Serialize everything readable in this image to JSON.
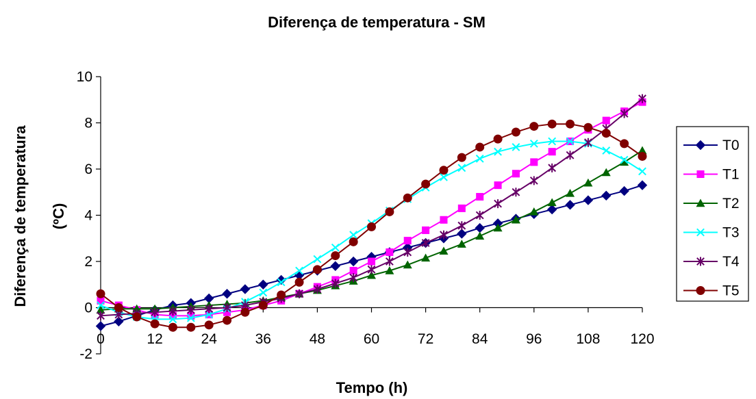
{
  "chart_data": {
    "type": "line",
    "title": "Diferença de temperatura - SM",
    "xlabel": "Tempo (h)",
    "ylabel_lines": [
      "Diferença de temperatura",
      "(ºC)"
    ],
    "xlim": [
      0,
      120
    ],
    "ylim": [
      -2,
      10
    ],
    "x_ticks": [
      "0",
      "12",
      "24",
      "36",
      "48",
      "60",
      "72",
      "84",
      "96",
      "108",
      "120"
    ],
    "y_ticks": [
      "-2",
      "0",
      "2",
      "4",
      "6",
      "8",
      "10"
    ],
    "grid": false,
    "legend_position": "right",
    "x": [
      0,
      4,
      8,
      12,
      16,
      20,
      24,
      28,
      32,
      36,
      40,
      44,
      48,
      52,
      56,
      60,
      64,
      68,
      72,
      76,
      80,
      84,
      88,
      92,
      96,
      100,
      104,
      108,
      112,
      116,
      120
    ],
    "series": [
      {
        "name": "T0",
        "color": "#000080",
        "marker": "diamond",
        "values": [
          -0.8,
          -0.6,
          -0.35,
          -0.1,
          0.1,
          0.2,
          0.4,
          0.6,
          0.8,
          1.0,
          1.2,
          1.4,
          1.6,
          1.8,
          2.0,
          2.2,
          2.4,
          2.6,
          2.8,
          3.0,
          3.2,
          3.45,
          3.65,
          3.85,
          4.05,
          4.25,
          4.45,
          4.65,
          4.85,
          5.05,
          5.3
        ]
      },
      {
        "name": "T1",
        "color": "#FF00FF",
        "marker": "square",
        "values": [
          0.3,
          0.1,
          -0.1,
          -0.3,
          -0.35,
          -0.35,
          -0.3,
          -0.2,
          -0.1,
          0.1,
          0.3,
          0.6,
          0.9,
          1.2,
          1.6,
          2.0,
          2.4,
          2.9,
          3.35,
          3.8,
          4.3,
          4.8,
          5.3,
          5.8,
          6.3,
          6.75,
          7.2,
          7.7,
          8.1,
          8.5,
          8.9
        ]
      },
      {
        "name": "T2",
        "color": "#006400",
        "marker": "triangle",
        "values": [
          -0.1,
          -0.05,
          -0.05,
          -0.05,
          0.0,
          0.05,
          0.1,
          0.15,
          0.2,
          0.3,
          0.45,
          0.6,
          0.75,
          0.95,
          1.15,
          1.4,
          1.6,
          1.85,
          2.15,
          2.45,
          2.75,
          3.1,
          3.45,
          3.8,
          4.15,
          4.55,
          4.95,
          5.4,
          5.85,
          6.3,
          6.8
        ]
      },
      {
        "name": "T3",
        "color": "#00FFFF",
        "marker": "x",
        "values": [
          0.1,
          -0.2,
          -0.4,
          -0.5,
          -0.5,
          -0.45,
          -0.3,
          -0.05,
          0.25,
          0.65,
          1.1,
          1.6,
          2.1,
          2.6,
          3.15,
          3.65,
          4.2,
          4.7,
          5.2,
          5.65,
          6.05,
          6.45,
          6.75,
          6.95,
          7.1,
          7.2,
          7.2,
          7.1,
          6.8,
          6.4,
          5.9
        ]
      },
      {
        "name": "T4",
        "color": "#660066",
        "marker": "star",
        "values": [
          -0.35,
          -0.3,
          -0.25,
          -0.2,
          -0.15,
          -0.1,
          -0.05,
          0.0,
          0.1,
          0.25,
          0.4,
          0.6,
          0.8,
          1.05,
          1.3,
          1.65,
          2.0,
          2.4,
          2.8,
          3.15,
          3.55,
          4.0,
          4.5,
          5.0,
          5.5,
          6.05,
          6.6,
          7.15,
          7.75,
          8.4,
          9.05
        ]
      },
      {
        "name": "T5",
        "color": "#800000",
        "marker": "circle",
        "values": [
          0.6,
          0.0,
          -0.4,
          -0.7,
          -0.85,
          -0.85,
          -0.75,
          -0.55,
          -0.2,
          0.1,
          0.55,
          1.1,
          1.65,
          2.25,
          2.85,
          3.5,
          4.15,
          4.75,
          5.35,
          5.95,
          6.5,
          6.95,
          7.3,
          7.6,
          7.85,
          7.95,
          7.95,
          7.8,
          7.55,
          7.1,
          6.55
        ]
      }
    ]
  }
}
